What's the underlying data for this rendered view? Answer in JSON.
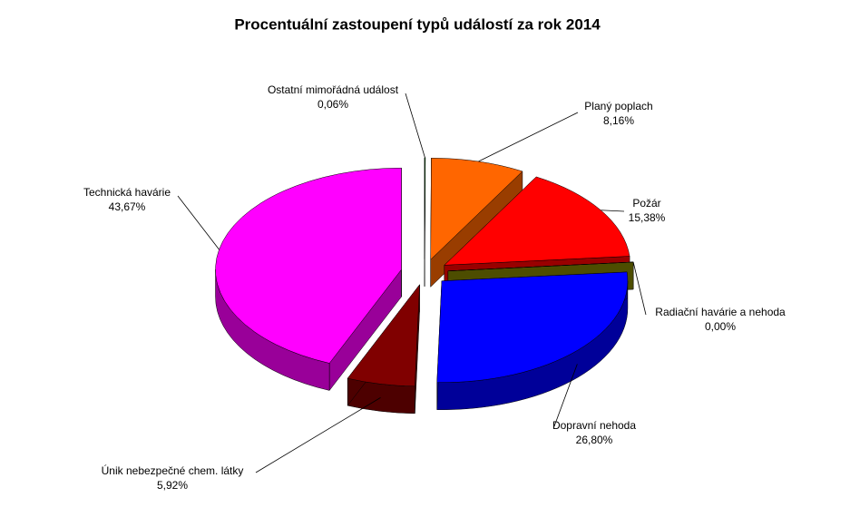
{
  "chart_data": {
    "type": "pie",
    "title": "Procentuální zastoupení typů událostí za rok 2014",
    "categories": [
      "Ostatní mimořádná událost",
      "Planý poplach",
      "Požár",
      "Radiační havárie a nehoda",
      "Dopravní nehoda",
      "Únik nebezpečné chem. látky",
      "Technická havárie"
    ],
    "values": [
      0.06,
      8.16,
      15.38,
      0.0,
      26.8,
      5.92,
      43.67
    ],
    "value_labels": [
      "0,06%",
      "8,16%",
      "15,38%",
      "0,00%",
      "26,80%",
      "5,92%",
      "43,67%"
    ],
    "colors": [
      "#22cc22",
      "#ff6600",
      "#ff0000",
      "#808000",
      "#0000ff",
      "#800000",
      "#ff00ff"
    ]
  }
}
